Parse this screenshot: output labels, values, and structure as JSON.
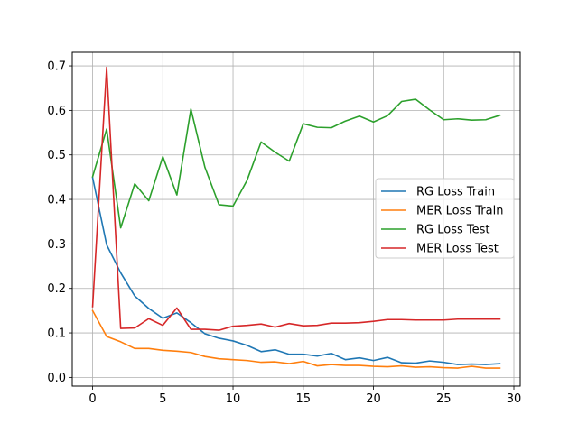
{
  "chart_data": {
    "type": "line",
    "title": "",
    "xlabel": "",
    "ylabel": "",
    "xlim": [
      -1.45,
      30.45
    ],
    "ylim": [
      -0.0195,
      0.7305
    ],
    "xticks": [
      0,
      5,
      10,
      15,
      20,
      25,
      30
    ],
    "yticks": [
      0.0,
      0.1,
      0.2,
      0.3,
      0.4,
      0.5,
      0.6,
      0.7
    ],
    "xtick_labels": [
      "0",
      "5",
      "10",
      "15",
      "20",
      "25",
      "30"
    ],
    "ytick_labels": [
      "0.0",
      "0.1",
      "0.2",
      "0.3",
      "0.4",
      "0.5",
      "0.6",
      "0.7"
    ],
    "grid": true,
    "legend_position": "center-right",
    "x": [
      0,
      1,
      2,
      3,
      4,
      5,
      6,
      7,
      8,
      9,
      10,
      11,
      12,
      13,
      14,
      15,
      16,
      17,
      18,
      19,
      20,
      21,
      22,
      23,
      24,
      25,
      26,
      27,
      28,
      29
    ],
    "series": [
      {
        "name": "RG Loss Train",
        "color": "#1f77b4",
        "values": [
          0.449,
          0.298,
          0.235,
          0.183,
          0.155,
          0.133,
          0.145,
          0.123,
          0.098,
          0.088,
          0.082,
          0.072,
          0.058,
          0.062,
          0.052,
          0.052,
          0.048,
          0.054,
          0.04,
          0.044,
          0.038,
          0.045,
          0.033,
          0.032,
          0.037,
          0.034,
          0.029,
          0.03,
          0.029,
          0.031
        ]
      },
      {
        "name": "MER Loss Train",
        "color": "#ff7f0e",
        "values": [
          0.15,
          0.092,
          0.08,
          0.065,
          0.065,
          0.061,
          0.059,
          0.056,
          0.047,
          0.042,
          0.04,
          0.038,
          0.034,
          0.035,
          0.031,
          0.036,
          0.026,
          0.029,
          0.027,
          0.027,
          0.025,
          0.024,
          0.026,
          0.023,
          0.024,
          0.022,
          0.021,
          0.025,
          0.021,
          0.021
        ]
      },
      {
        "name": "RG Loss Test",
        "color": "#2ca02c",
        "values": [
          0.451,
          0.558,
          0.336,
          0.435,
          0.397,
          0.496,
          0.41,
          0.603,
          0.472,
          0.388,
          0.385,
          0.443,
          0.529,
          0.506,
          0.486,
          0.57,
          0.562,
          0.561,
          0.576,
          0.587,
          0.574,
          0.588,
          0.62,
          0.625,
          0.601,
          0.579,
          0.581,
          0.578,
          0.579,
          0.589
        ]
      },
      {
        "name": "MER Loss Test",
        "color": "#d62728",
        "values": [
          0.159,
          0.697,
          0.11,
          0.111,
          0.132,
          0.117,
          0.156,
          0.108,
          0.108,
          0.106,
          0.115,
          0.117,
          0.12,
          0.113,
          0.121,
          0.116,
          0.117,
          0.122,
          0.122,
          0.123,
          0.126,
          0.13,
          0.13,
          0.129,
          0.129,
          0.129,
          0.131,
          0.131,
          0.131,
          0.131
        ]
      }
    ]
  }
}
